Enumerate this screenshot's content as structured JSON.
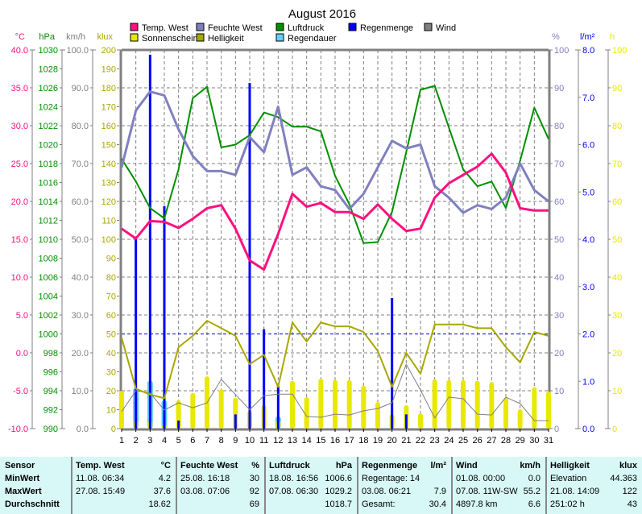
{
  "chart_data": {
    "type": "line",
    "title": "August 2016",
    "x": [
      1,
      2,
      3,
      4,
      5,
      6,
      7,
      8,
      9,
      10,
      11,
      12,
      13,
      14,
      15,
      16,
      17,
      18,
      19,
      20,
      21,
      22,
      23,
      24,
      25,
      26,
      27,
      28,
      29,
      30,
      31
    ],
    "xlabel": "",
    "grid": true,
    "legend_position": "top",
    "legend": [
      {
        "name": "Temp. West",
        "color": "#ff1080"
      },
      {
        "name": "Feuchte West",
        "color": "#8080c0"
      },
      {
        "name": "Luftdruck",
        "color": "#009000"
      },
      {
        "name": "Regenmenge",
        "color": "#0000ff"
      },
      {
        "name": "Wind",
        "color": "#808080"
      },
      {
        "name": "Sonnenschein",
        "color": "#e8e800"
      },
      {
        "name": "Helligkeit",
        "color": "#a8a800"
      },
      {
        "name": "Regendauer",
        "color": "#60d0ff"
      }
    ],
    "axes": {
      "left": [
        {
          "unit": "°C",
          "color": "#ff1080",
          "range": [
            -10,
            40
          ],
          "ticks": [
            "40.0",
            "35.0",
            "30.0",
            "25.0",
            "20.0",
            "15.0",
            "10.0",
            "5.0",
            "0.0",
            "-5.0",
            "-10.0"
          ]
        },
        {
          "unit": "hPa",
          "color": "#009000",
          "range": [
            990,
            1030
          ],
          "ticks": [
            "1030",
            "1028",
            "1026",
            "1024",
            "1022",
            "1020",
            "1018",
            "1016",
            "1014",
            "1012",
            "1010",
            "1008",
            "1006",
            "1004",
            "1002",
            "1000",
            "998",
            "996",
            "994",
            "992",
            "990"
          ]
        },
        {
          "unit": "km/h",
          "color": "#808080",
          "range": [
            0,
            100
          ],
          "ticks": [
            "100.0",
            "90.0",
            "80.0",
            "70.0",
            "60.0",
            "50.0",
            "40.0",
            "30.0",
            "20.0",
            "10.0",
            "0.0"
          ]
        },
        {
          "unit": "klux",
          "color": "#a8a800",
          "range": [
            0,
            200
          ],
          "ticks": [
            "200",
            "190",
            "180",
            "170",
            "160",
            "150",
            "140",
            "130",
            "120",
            "110",
            "100",
            "90",
            "80",
            "70",
            "60",
            "50",
            "40",
            "30",
            "20",
            "10",
            "0"
          ]
        }
      ],
      "right": [
        {
          "unit": "%",
          "color": "#8080c0",
          "range": [
            0,
            100
          ],
          "ticks": [
            "100",
            "90",
            "80",
            "70",
            "60",
            "50",
            "40",
            "30",
            "20",
            "10",
            "0"
          ]
        },
        {
          "unit": "l/m²",
          "color": "#0000ff",
          "range": [
            0,
            8
          ],
          "ticks": [
            "8.0",
            "7.0",
            "6.0",
            "5.0",
            "4.0",
            "3.0",
            "2.0",
            "1.0",
            "0.0"
          ]
        },
        {
          "unit": "h",
          "color": "#e8e800",
          "range": [
            0,
            100
          ],
          "ticks": [
            "100",
            "90",
            "80",
            "70",
            "60",
            "50",
            "40",
            "30",
            "20",
            "10",
            "0"
          ]
        }
      ]
    },
    "series": [
      {
        "name": "Temp. West",
        "axis": "°C",
        "kind": "line",
        "values": [
          16.4,
          15.1,
          17.4,
          17.3,
          16.5,
          17.7,
          19.1,
          19.5,
          16.4,
          12.2,
          11.0,
          15.7,
          21.0,
          19.3,
          19.8,
          18.6,
          18.6,
          17.7,
          19.6,
          17.7,
          16.1,
          16.4,
          20.5,
          22.4,
          23.5,
          24.6,
          26.3,
          23.8,
          19.1,
          18.8,
          18.8
        ]
      },
      {
        "name": "Feuchte West",
        "axis": "%",
        "kind": "line",
        "values": [
          69,
          84,
          89,
          88,
          79,
          72,
          68,
          68,
          67,
          77,
          73,
          85,
          67,
          69,
          64,
          63,
          58,
          62,
          69,
          76,
          74,
          75,
          64,
          61,
          57,
          59,
          58,
          61,
          70,
          63,
          60
        ]
      },
      {
        "name": "Luftdruck",
        "axis": "hPa",
        "kind": "line",
        "values": [
          1018.5,
          1016.1,
          1013.3,
          1012.2,
          1017.4,
          1024.9,
          1026.1,
          1019.7,
          1020.0,
          1021.0,
          1023.4,
          1022.9,
          1021.9,
          1021.9,
          1021.4,
          1016.7,
          1013.7,
          1009.6,
          1009.7,
          1012.9,
          1019.2,
          1025.8,
          1026.2,
          1021.8,
          1017.4,
          1015.6,
          1016.1,
          1013.3,
          1018.3,
          1023.9,
          1020.6
        ]
      },
      {
        "name": "Helligkeit",
        "axis": "klux",
        "kind": "line",
        "values": [
          48,
          21,
          18,
          16,
          43,
          49,
          57,
          53,
          49,
          34,
          39,
          22,
          56,
          46,
          56,
          54,
          54,
          51,
          41,
          22,
          40,
          29,
          55,
          55,
          55,
          53,
          53,
          43,
          35,
          51,
          49
        ]
      },
      {
        "name": "Wind",
        "axis": "km/h",
        "kind": "line",
        "values": [
          4.5,
          10.0,
          9.4,
          4.9,
          6.8,
          5.5,
          6.8,
          13.0,
          9.0,
          5.0,
          8.7,
          9.1,
          9.1,
          3.2,
          3.0,
          3.8,
          3.6,
          4.7,
          5.3,
          6.8,
          17.0,
          10.2,
          2.8,
          8.3,
          7.9,
          3.8,
          3.6,
          8.3,
          6.6,
          2.1,
          2.1
        ]
      },
      {
        "name": "Sonnenschein",
        "axis": "h",
        "kind": "bar",
        "values": [
          10.0,
          2.0,
          2.0,
          1.0,
          7.5,
          9.4,
          13.8,
          10.4,
          8.1,
          4.7,
          6.2,
          2.0,
          12.6,
          8.3,
          13.2,
          12.8,
          12.8,
          11.3,
          7.0,
          3.8,
          6.2,
          4.0,
          13.0,
          12.8,
          12.8,
          12.6,
          12.3,
          8.1,
          5.1,
          10.9,
          9.8
        ]
      },
      {
        "name": "Regendauer",
        "axis": "h",
        "kind": "bar",
        "values": [
          0,
          10.6,
          12.6,
          7.4,
          0,
          0,
          0,
          0,
          0,
          0,
          0,
          3.2,
          0,
          0,
          0,
          0,
          0,
          0,
          0,
          0,
          0,
          0,
          0,
          0,
          0,
          0,
          0,
          0,
          0,
          0,
          0
        ]
      },
      {
        "name": "Regenmenge",
        "axis": "l/m²",
        "kind": "bar",
        "values": [
          0,
          4.0,
          7.9,
          4.7,
          0.17,
          0,
          0,
          0,
          0.3,
          7.3,
          2.1,
          0.9,
          0,
          0,
          0,
          0,
          0,
          0,
          0,
          2.76,
          0.3,
          0,
          0,
          0,
          0,
          0,
          0,
          0,
          0,
          0,
          0
        ]
      }
    ],
    "reference_line": {
      "axis": "l/m²",
      "value": 2.0
    }
  },
  "stats": {
    "row_labels": [
      "Sensor",
      "MinWert",
      "MaxWert",
      "Durchschnitt"
    ],
    "columns": [
      {
        "title": "Temp. West",
        "unit": "°C",
        "rows": [
          [
            "11.08.  06:34",
            "4.2"
          ],
          [
            "27.08.  15:49",
            "37.6"
          ],
          [
            "",
            "18.62"
          ]
        ]
      },
      {
        "title": "Feuchte West",
        "unit": "%",
        "rows": [
          [
            "25.08.  16:18",
            "30"
          ],
          [
            "03.08.  07:06",
            "92"
          ],
          [
            "",
            "69"
          ]
        ]
      },
      {
        "title": "Luftdruck",
        "unit": "hPa",
        "rows": [
          [
            "18.08.  16:56",
            "1006.6"
          ],
          [
            "07.08.  06:30",
            "1029.2"
          ],
          [
            "",
            "1018.7"
          ]
        ]
      },
      {
        "title": "Regenmenge",
        "unit": "l/m²",
        "rows": [
          [
            "Regentage: 14",
            ""
          ],
          [
            "03.08.  06:21",
            "7.9"
          ],
          [
            "Gesamt:",
            "30.4"
          ]
        ]
      },
      {
        "title": "Wind",
        "unit": "km/h",
        "rows": [
          [
            "01.08.  00:00",
            "0.0"
          ],
          [
            "07.08.  11W-SW",
            "55.2"
          ],
          [
            "4897.8 km",
            "6.6"
          ]
        ]
      },
      {
        "title": "Helligkeit",
        "unit": "klux",
        "rows": [
          [
            "Elevation",
            "44.363"
          ],
          [
            "21.08.  14:09",
            "122"
          ],
          [
            "251:02 h",
            "43"
          ]
        ]
      }
    ]
  }
}
